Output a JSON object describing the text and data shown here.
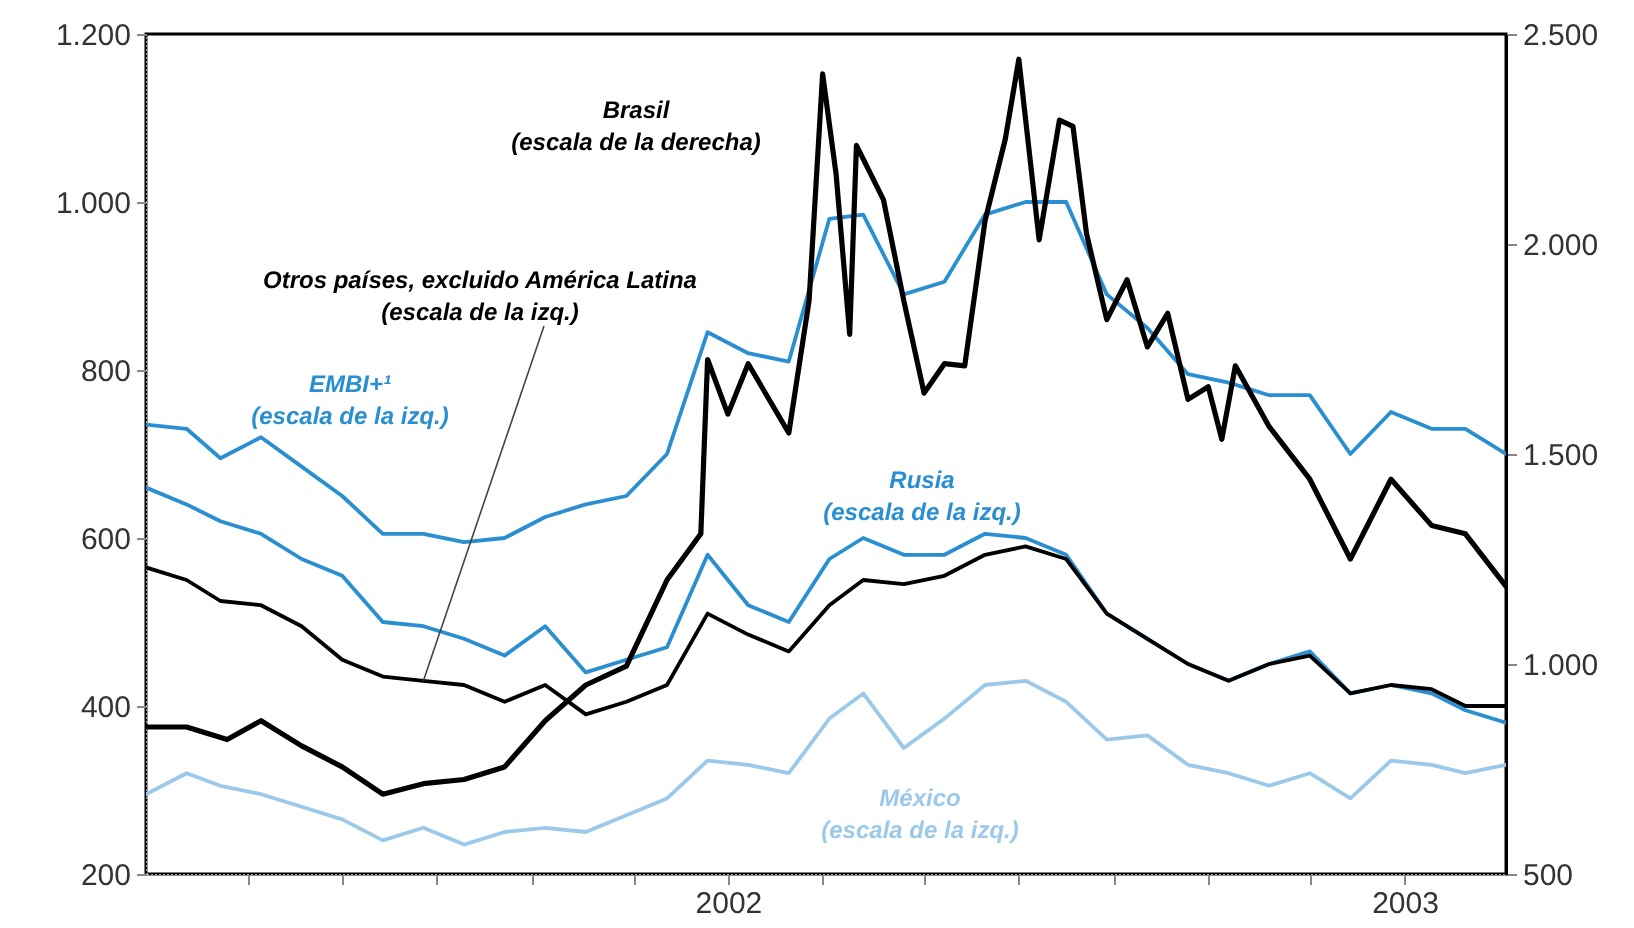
{
  "chart_data": {
    "type": "line",
    "x": [
      2001.14,
      2001.2,
      2001.25,
      2001.31,
      2001.37,
      2001.43,
      2001.49,
      2001.55,
      2001.61,
      2001.67,
      2001.73,
      2001.79,
      2001.85,
      2001.91,
      2001.97,
      2002.03,
      2002.09,
      2002.15,
      2002.2,
      2002.26,
      2002.32,
      2002.38,
      2002.44,
      2002.5,
      2002.56,
      2002.62,
      2002.68,
      2002.74,
      2002.8,
      2002.86,
      2002.92,
      2002.98,
      2003.04,
      2003.09,
      2003.15
    ],
    "series": [
      {
        "name": "EMBI+¹\n(escala de la izq.)",
        "color": "#2a8fd0",
        "values": [
          735,
          730,
          695,
          720,
          685,
          650,
          605,
          605,
          595,
          600,
          625,
          640,
          650,
          700,
          845,
          820,
          810,
          980,
          985,
          890,
          905,
          985,
          1000,
          1000,
          890,
          850,
          795,
          785,
          770,
          770,
          700,
          750,
          730,
          730,
          700
        ]
      },
      {
        "name": "Rusia\n(escala de la izq.)",
        "color": "#2a8fd0",
        "values": [
          660,
          640,
          620,
          605,
          575,
          555,
          500,
          495,
          480,
          460,
          495,
          440,
          455,
          470,
          580,
          520,
          500,
          575,
          600,
          580,
          580,
          605,
          600,
          580,
          510,
          480,
          450,
          430,
          450,
          465,
          415,
          425,
          415,
          395,
          380
        ]
      },
      {
        "name": "Otros países, excluido América Latina\n(escala de la izq.)",
        "color": "#000000",
        "values": [
          565,
          550,
          525,
          520,
          495,
          455,
          435,
          430,
          425,
          405,
          425,
          390,
          405,
          425,
          510,
          485,
          465,
          520,
          550,
          545,
          555,
          580,
          590,
          575,
          510,
          480,
          450,
          430,
          450,
          460,
          415,
          425,
          420,
          400,
          400
        ]
      },
      {
        "name": "México\n(escala de la izq.)",
        "color": "#9cc9ea",
        "values": [
          295,
          320,
          305,
          295,
          280,
          265,
          240,
          255,
          235,
          250,
          255,
          250,
          270,
          290,
          335,
          330,
          320,
          385,
          415,
          350,
          385,
          425,
          430,
          405,
          360,
          365,
          330,
          320,
          305,
          320,
          290,
          335,
          330,
          320,
          330
        ]
      },
      {
        "name": "Brasil\n(escala de la derecha)",
        "color": "#000000",
        "axis": "y2",
        "x": [
          2001.14,
          2001.2,
          2001.26,
          2001.31,
          2001.37,
          2001.43,
          2001.49,
          2001.55,
          2001.61,
          2001.67,
          2001.73,
          2001.79,
          2001.85,
          2001.91,
          2001.96,
          2001.97,
          2002.0,
          2002.03,
          2002.09,
          2002.12,
          2002.14,
          2002.16,
          2002.18,
          2002.19,
          2002.23,
          2002.26,
          2002.29,
          2002.32,
          2002.35,
          2002.38,
          2002.41,
          2002.43,
          2002.46,
          2002.49,
          2002.51,
          2002.53,
          2002.56,
          2002.59,
          2002.62,
          2002.65,
          2002.68,
          2002.71,
          2002.73,
          2002.75,
          2002.8,
          2002.86,
          2002.92,
          2002.98,
          2003.04,
          2003.09,
          2003.15
        ],
        "values": [
          850,
          850,
          820,
          865,
          805,
          755,
          690,
          715,
          725,
          755,
          865,
          950,
          995,
          1200,
          1310,
          1725,
          1595,
          1715,
          1550,
          1865,
          2405,
          2165,
          1785,
          2235,
          2105,
          1865,
          1645,
          1715,
          1710,
          2055,
          2250,
          2440,
          2010,
          2295,
          2280,
          2025,
          1820,
          1915,
          1755,
          1835,
          1630,
          1660,
          1535,
          1710,
          1565,
          1440,
          1250,
          1440,
          1330,
          1310,
          1185
        ]
      }
    ],
    "xlim": [
      2001.14,
      2003.15
    ],
    "xticks": [
      {
        "value": 2001.29,
        "label": null
      },
      {
        "value": 2001.43,
        "label": null
      },
      {
        "value": 2001.57,
        "label": null
      },
      {
        "value": 2001.71,
        "label": null
      },
      {
        "value": 2001.86,
        "label": null
      },
      2002,
      {
        "value": 2002.14,
        "label": null
      },
      {
        "value": 2002.29,
        "label": null
      },
      {
        "value": 2002.43,
        "label": null
      },
      {
        "value": 2002.57,
        "label": null
      },
      {
        "value": 2002.71,
        "label": null
      },
      {
        "value": 2002.86,
        "label": null
      },
      2003
    ],
    "ylim": [
      200,
      1200
    ],
    "yticks": [
      200,
      400,
      600,
      800,
      {
        "value": 1000,
        "label": "1.000"
      },
      {
        "value": 1200,
        "label": "1.200"
      }
    ],
    "y2lim": [
      500,
      2500
    ],
    "y2ticks": [
      500,
      {
        "value": 1000,
        "label": "1.000"
      },
      {
        "value": 1500,
        "label": "1.500"
      },
      {
        "value": 2000,
        "label": "2.000"
      },
      {
        "value": 2500,
        "label": "2.500"
      }
    ],
    "grid": false,
    "marker": "none",
    "line_style": "solid"
  }
}
